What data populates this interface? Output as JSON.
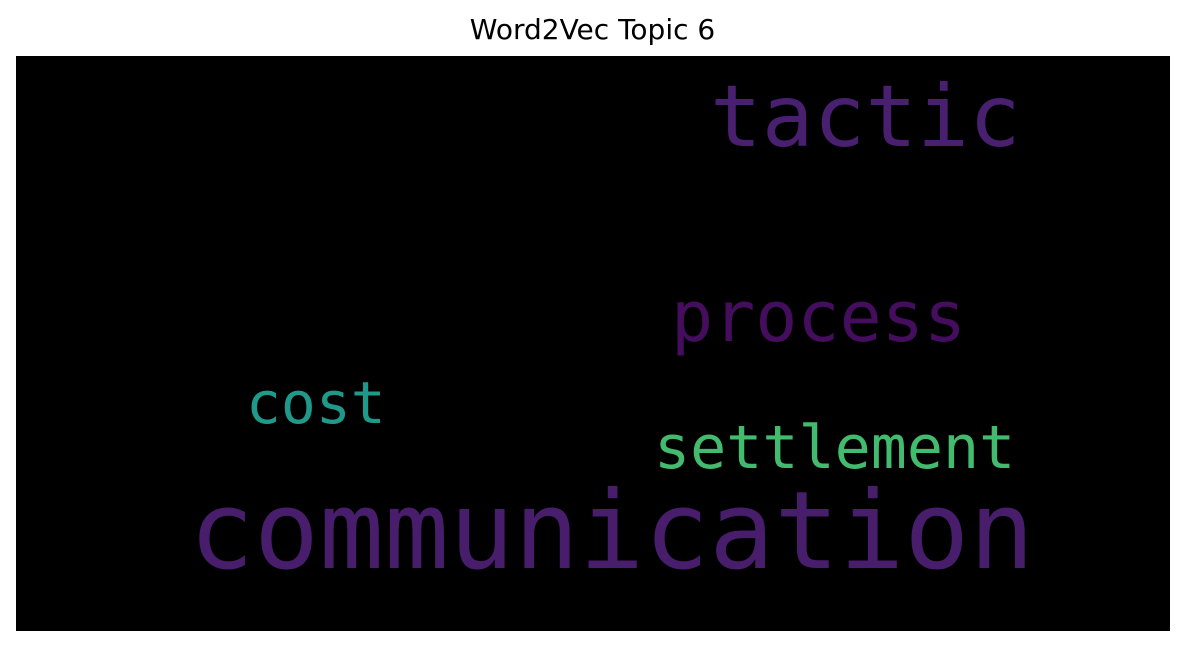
{
  "title": "Word2Vec Topic 6",
  "cloud": {
    "background": "#000000",
    "words": [
      {
        "text": "tactic",
        "color": "#48206f"
      },
      {
        "text": "process",
        "color": "#440d5e"
      },
      {
        "text": "cost",
        "color": "#1f9a8a"
      },
      {
        "text": "settlement",
        "color": "#43bb6f"
      },
      {
        "text": "communication",
        "color": "#471d6c"
      }
    ]
  }
}
